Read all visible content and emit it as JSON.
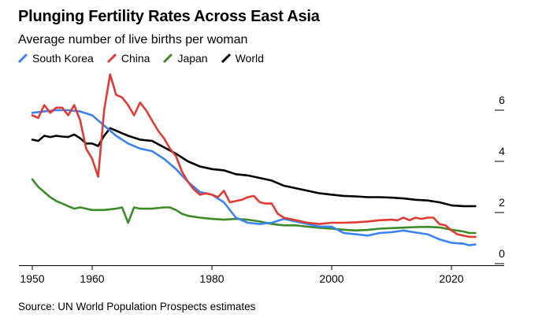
{
  "header": {
    "title": "Plunging Fertility Rates Across East Asia",
    "subtitle": "Average number of live births per woman"
  },
  "footer": {
    "source": "Source: UN World Population Prospects estimates"
  },
  "chart_data": {
    "type": "line",
    "title": "Plunging Fertility Rates Across East Asia",
    "subtitle": "Average number of live births per woman",
    "xlabel": "",
    "ylabel": "",
    "xlim": [
      1948,
      2026
    ],
    "ylim": [
      0,
      6.4
    ],
    "x_ticks": [
      1950,
      1960,
      1980,
      2000,
      2020
    ],
    "x_tick_labels": [
      "1950",
      "1960",
      "1980",
      "2000",
      "2020"
    ],
    "y_ticks": [
      0,
      2,
      4,
      6
    ],
    "y_tick_labels": [
      "0",
      "2",
      "4",
      "6"
    ],
    "grid": false,
    "legend_position": "top-left",
    "series": [
      {
        "name": "South Korea",
        "color": "#3a83f1",
        "x": [
          1950,
          1952,
          1954,
          1956,
          1958,
          1960,
          1962,
          1964,
          1966,
          1968,
          1970,
          1972,
          1974,
          1976,
          1978,
          1980,
          1982,
          1984,
          1986,
          1988,
          1990,
          1992,
          1994,
          1996,
          1998,
          2000,
          2002,
          2004,
          2006,
          2008,
          2010,
          2012,
          2014,
          2016,
          2018,
          2020,
          2022,
          2023,
          2024
        ],
        "y": [
          5.9,
          5.95,
          6.0,
          6.0,
          5.95,
          5.8,
          5.4,
          5.0,
          4.7,
          4.5,
          4.4,
          4.1,
          3.7,
          3.2,
          2.8,
          2.7,
          2.4,
          1.8,
          1.6,
          1.55,
          1.6,
          1.75,
          1.65,
          1.55,
          1.45,
          1.45,
          1.2,
          1.15,
          1.1,
          1.2,
          1.23,
          1.3,
          1.22,
          1.15,
          0.95,
          0.82,
          0.78,
          0.72,
          0.75
        ]
      },
      {
        "name": "China",
        "color": "#e13b33",
        "x": [
          1950,
          1951,
          1952,
          1953,
          1954,
          1955,
          1956,
          1957,
          1958,
          1959,
          1960,
          1961,
          1962,
          1963,
          1964,
          1965,
          1966,
          1967,
          1968,
          1969,
          1970,
          1971,
          1972,
          1973,
          1974,
          1975,
          1976,
          1977,
          1978,
          1979,
          1980,
          1981,
          1982,
          1983,
          1984,
          1985,
          1986,
          1987,
          1988,
          1989,
          1990,
          1991,
          1992,
          1993,
          1994,
          1996,
          1998,
          2000,
          2002,
          2004,
          2006,
          2008,
          2010,
          2011,
          2012,
          2013,
          2014,
          2015,
          2016,
          2017,
          2018,
          2019,
          2020,
          2021,
          2022,
          2023,
          2024
        ],
        "y": [
          5.8,
          5.7,
          6.2,
          5.9,
          6.1,
          6.1,
          5.8,
          6.2,
          5.6,
          4.5,
          4.1,
          3.4,
          6.0,
          7.4,
          6.6,
          6.5,
          6.2,
          5.8,
          6.3,
          6.0,
          5.6,
          5.2,
          4.9,
          4.5,
          4.2,
          3.6,
          3.2,
          2.9,
          2.7,
          2.75,
          2.7,
          2.6,
          2.85,
          2.4,
          2.45,
          2.5,
          2.6,
          2.65,
          2.4,
          2.35,
          2.35,
          1.95,
          1.8,
          1.75,
          1.7,
          1.6,
          1.55,
          1.6,
          1.6,
          1.62,
          1.65,
          1.7,
          1.72,
          1.7,
          1.8,
          1.7,
          1.8,
          1.75,
          1.8,
          1.8,
          1.55,
          1.5,
          1.3,
          1.15,
          1.1,
          1.05,
          1.05
        ]
      },
      {
        "name": "Japan",
        "color": "#3d8b28",
        "x": [
          1950,
          1951,
          1952,
          1953,
          1954,
          1955,
          1956,
          1957,
          1958,
          1960,
          1962,
          1964,
          1965,
          1966,
          1967,
          1968,
          1970,
          1972,
          1973,
          1974,
          1975,
          1976,
          1978,
          1980,
          1982,
          1984,
          1986,
          1988,
          1990,
          1992,
          1994,
          1996,
          1998,
          2000,
          2002,
          2004,
          2006,
          2008,
          2010,
          2012,
          2014,
          2016,
          2018,
          2020,
          2022,
          2023,
          2024
        ],
        "y": [
          3.3,
          3.0,
          2.8,
          2.6,
          2.45,
          2.35,
          2.25,
          2.15,
          2.2,
          2.1,
          2.1,
          2.15,
          2.2,
          1.6,
          2.2,
          2.15,
          2.15,
          2.2,
          2.2,
          2.1,
          1.95,
          1.87,
          1.8,
          1.75,
          1.72,
          1.75,
          1.72,
          1.65,
          1.55,
          1.5,
          1.5,
          1.45,
          1.4,
          1.37,
          1.33,
          1.3,
          1.32,
          1.37,
          1.39,
          1.41,
          1.43,
          1.44,
          1.42,
          1.33,
          1.26,
          1.2,
          1.2
        ]
      },
      {
        "name": "World",
        "color": "#000000",
        "x": [
          1950,
          1951,
          1952,
          1953,
          1954,
          1955,
          1956,
          1957,
          1958,
          1959,
          1960,
          1961,
          1962,
          1963,
          1964,
          1965,
          1966,
          1968,
          1970,
          1972,
          1974,
          1976,
          1978,
          1980,
          1982,
          1984,
          1986,
          1988,
          1990,
          1992,
          1994,
          1996,
          1998,
          2000,
          2002,
          2004,
          2006,
          2008,
          2010,
          2012,
          2014,
          2016,
          2018,
          2020,
          2022,
          2024
        ],
        "y": [
          4.85,
          4.8,
          5.0,
          4.95,
          5.0,
          4.97,
          4.95,
          5.05,
          4.9,
          4.7,
          4.7,
          4.6,
          5.0,
          5.3,
          5.2,
          5.1,
          5.0,
          4.85,
          4.8,
          4.55,
          4.3,
          4.0,
          3.8,
          3.7,
          3.65,
          3.5,
          3.45,
          3.35,
          3.25,
          3.05,
          2.95,
          2.85,
          2.75,
          2.7,
          2.65,
          2.63,
          2.6,
          2.6,
          2.58,
          2.55,
          2.5,
          2.47,
          2.4,
          2.28,
          2.25,
          2.25
        ]
      }
    ]
  }
}
